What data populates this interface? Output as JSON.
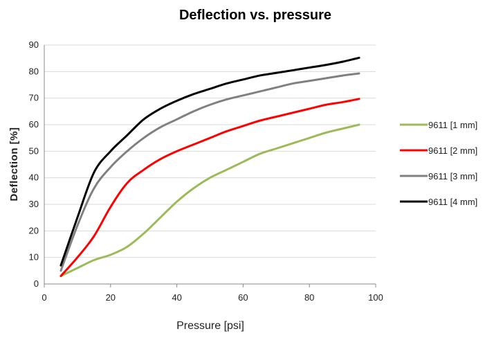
{
  "chart_data": {
    "type": "line",
    "title": "Deflection vs. pressure",
    "xlabel": "Pressure [psi]",
    "ylabel": "Deflection [%]",
    "xlim": [
      0,
      100
    ],
    "ylim": [
      0,
      90
    ],
    "xticks": [
      "0",
      "20",
      "40",
      "60",
      "80",
      "100"
    ],
    "yticks": [
      "0",
      "10",
      "20",
      "30",
      "40",
      "50",
      "60",
      "70",
      "80",
      "90"
    ],
    "grid": true,
    "legend_position": "right",
    "series": [
      {
        "name": "9611 [1 mm]",
        "color": "#9bbb59",
        "x": [
          5,
          10,
          15,
          20,
          25,
          30,
          35,
          40,
          45,
          50,
          55,
          60,
          65,
          70,
          75,
          80,
          85,
          90,
          95
        ],
        "y": [
          3,
          6,
          9,
          11,
          14,
          19,
          25,
          31,
          36,
          40,
          43,
          46,
          49,
          51,
          53,
          55,
          57,
          58.5,
          60
        ]
      },
      {
        "name": "9611 [2 mm]",
        "color": "#ff0000",
        "x": [
          5,
          10,
          15,
          20,
          25,
          30,
          35,
          40,
          45,
          50,
          55,
          60,
          65,
          70,
          75,
          80,
          85,
          90,
          95
        ],
        "y": [
          3,
          10,
          18,
          29,
          38,
          43,
          47,
          50,
          52.5,
          55,
          57.5,
          59.5,
          61.5,
          63,
          64.5,
          66,
          67.5,
          68.5,
          69.7
        ]
      },
      {
        "name": "9611 [3 mm]",
        "color": "#808080",
        "x": [
          5,
          10,
          15,
          20,
          25,
          30,
          35,
          40,
          45,
          50,
          55,
          60,
          65,
          70,
          75,
          80,
          85,
          90,
          95
        ],
        "y": [
          5,
          22,
          36,
          44,
          50,
          55,
          59,
          62,
          65,
          67.5,
          69.5,
          71,
          72.5,
          74,
          75.5,
          76.5,
          77.5,
          78.5,
          79.3
        ]
      },
      {
        "name": "9611 [4 mm]",
        "color": "#000000",
        "x": [
          5,
          10,
          15,
          20,
          25,
          30,
          35,
          40,
          45,
          50,
          55,
          60,
          65,
          70,
          75,
          80,
          85,
          90,
          95
        ],
        "y": [
          7,
          25,
          42,
          50,
          56,
          62,
          66,
          69,
          71.5,
          73.5,
          75.5,
          77,
          78.5,
          79.5,
          80.5,
          81.5,
          82.5,
          83.7,
          85.2
        ]
      }
    ]
  }
}
